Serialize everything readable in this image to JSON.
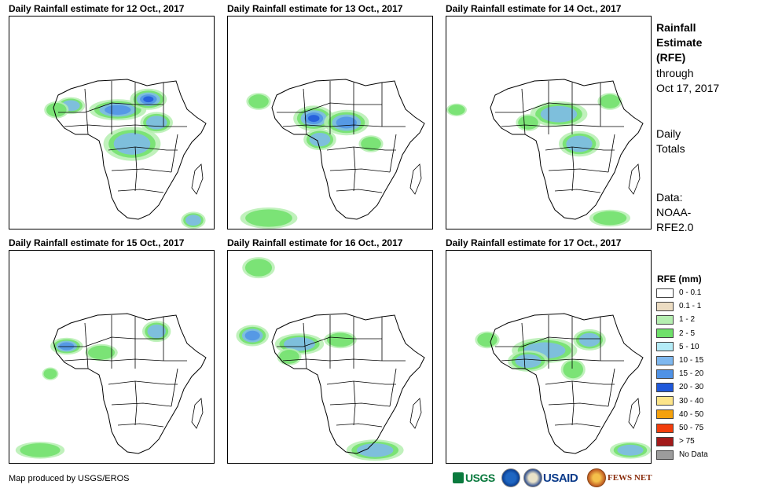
{
  "panels": [
    {
      "title": "Daily Rainfall estimate for 12 Oct., 2017",
      "rain": [
        [
          0.3,
          0.42,
          0.07,
          0.04,
          3
        ],
        [
          0.53,
          0.44,
          0.14,
          0.05,
          4
        ],
        [
          0.68,
          0.39,
          0.09,
          0.05,
          5
        ],
        [
          0.6,
          0.6,
          0.14,
          0.08,
          3
        ],
        [
          0.72,
          0.5,
          0.08,
          0.05,
          3
        ],
        [
          0.23,
          0.44,
          0.06,
          0.04,
          2
        ],
        [
          0.9,
          0.96,
          0.06,
          0.04,
          3
        ]
      ]
    },
    {
      "title": "Daily Rainfall estimate for 13 Oct., 2017",
      "rain": [
        [
          0.42,
          0.48,
          0.1,
          0.06,
          5
        ],
        [
          0.58,
          0.5,
          0.11,
          0.06,
          4
        ],
        [
          0.45,
          0.58,
          0.08,
          0.05,
          3
        ],
        [
          0.15,
          0.4,
          0.06,
          0.04,
          2
        ],
        [
          0.7,
          0.6,
          0.06,
          0.04,
          2
        ],
        [
          0.2,
          0.95,
          0.14,
          0.05,
          2
        ]
      ]
    },
    {
      "title": "Daily Rainfall estimate for 14 Oct., 2017",
      "rain": [
        [
          0.55,
          0.46,
          0.14,
          0.06,
          3
        ],
        [
          0.65,
          0.6,
          0.1,
          0.06,
          3
        ],
        [
          0.4,
          0.5,
          0.06,
          0.04,
          2
        ],
        [
          0.8,
          0.4,
          0.06,
          0.04,
          2
        ],
        [
          0.05,
          0.44,
          0.05,
          0.03,
          2
        ],
        [
          0.8,
          0.95,
          0.1,
          0.04,
          2
        ]
      ]
    },
    {
      "title": "Daily Rainfall estimate for 15 Oct., 2017",
      "rain": [
        [
          0.28,
          0.45,
          0.08,
          0.04,
          4
        ],
        [
          0.72,
          0.38,
          0.07,
          0.05,
          3
        ],
        [
          0.45,
          0.48,
          0.08,
          0.04,
          2
        ],
        [
          0.2,
          0.58,
          0.04,
          0.03,
          2
        ],
        [
          0.15,
          0.94,
          0.12,
          0.04,
          2
        ]
      ]
    },
    {
      "title": "Daily Rainfall estimate for 16 Oct., 2017",
      "rain": [
        [
          0.12,
          0.4,
          0.08,
          0.05,
          4
        ],
        [
          0.35,
          0.44,
          0.12,
          0.05,
          3
        ],
        [
          0.55,
          0.42,
          0.08,
          0.04,
          2
        ],
        [
          0.3,
          0.5,
          0.06,
          0.04,
          2
        ],
        [
          0.72,
          0.94,
          0.14,
          0.05,
          3
        ],
        [
          0.15,
          0.08,
          0.08,
          0.05,
          2
        ]
      ]
    },
    {
      "title": "Daily Rainfall estimate for 17 Oct., 2017",
      "rain": [
        [
          0.48,
          0.47,
          0.16,
          0.06,
          3
        ],
        [
          0.4,
          0.52,
          0.1,
          0.05,
          3
        ],
        [
          0.7,
          0.42,
          0.08,
          0.05,
          3
        ],
        [
          0.2,
          0.42,
          0.06,
          0.04,
          2
        ],
        [
          0.9,
          0.94,
          0.1,
          0.04,
          3
        ],
        [
          0.62,
          0.56,
          0.06,
          0.05,
          2
        ]
      ]
    }
  ],
  "sidebar": {
    "title_lines": [
      "Rainfall",
      "Estimate",
      "(RFE)"
    ],
    "through_lines": [
      "through",
      "Oct 17, 2017"
    ],
    "totals_lines": [
      "Daily",
      "Totals"
    ],
    "source_lines": [
      "Data:",
      "NOAA-",
      "RFE2.0"
    ]
  },
  "legend": {
    "title": "RFE (mm)",
    "items": [
      {
        "label": "0 - 0.1",
        "color": "#ffffff"
      },
      {
        "label": "0.1 - 1",
        "color": "#ecdcc2"
      },
      {
        "label": "1 - 2",
        "color": "#b5eeb0"
      },
      {
        "label": "2 - 5",
        "color": "#6fe06a"
      },
      {
        "label": "5 - 10",
        "color": "#b4ecf7"
      },
      {
        "label": "10 - 15",
        "color": "#7fb8ef"
      },
      {
        "label": "15 - 20",
        "color": "#4f92e6"
      },
      {
        "label": "20 - 30",
        "color": "#1f58db"
      },
      {
        "label": "30 - 40",
        "color": "#fde58a"
      },
      {
        "label": "40 - 50",
        "color": "#f5a10c"
      },
      {
        "label": "50 - 75",
        "color": "#f23d0c"
      },
      {
        "label": "> 75",
        "color": "#a31a1a"
      },
      {
        "label": "No Data",
        "color": "#9c9c9c"
      }
    ]
  },
  "credit": "Map produced by USGS/EROS",
  "logos": {
    "usgs": "USGS",
    "usaid": "USAID",
    "fews": "FEWS NET"
  }
}
